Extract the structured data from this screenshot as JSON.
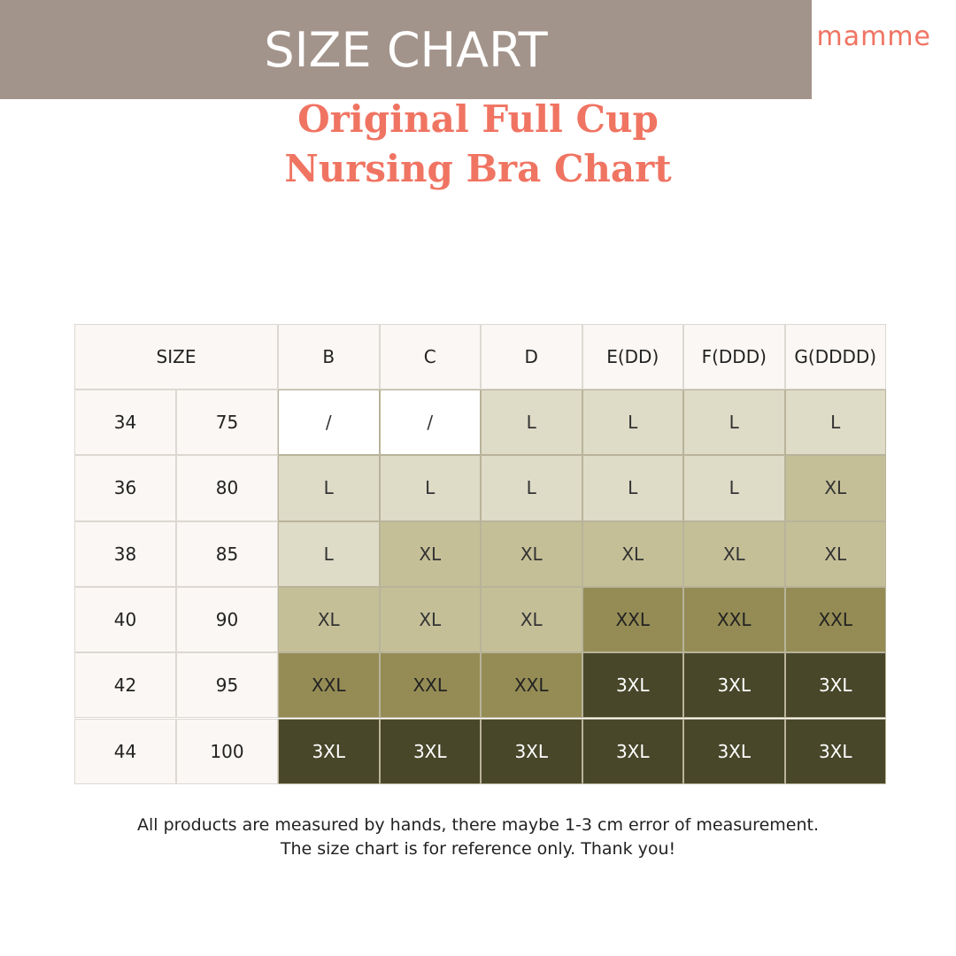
{
  "logo": "mamme",
  "title": [
    "Original Full Cup",
    "Nursing Bra Chart"
  ],
  "banner": "SIZE CHART",
  "table": {
    "header": [
      "SIZE",
      "B",
      "C",
      "D",
      "E(DD)",
      "F(DDD)",
      "G(DDDD)"
    ],
    "rows": [
      [
        "34",
        "75",
        "/",
        "/",
        "L",
        "L",
        "L",
        "L"
      ],
      [
        "36",
        "80",
        "L",
        "L",
        "L",
        "L",
        "L",
        "XL"
      ],
      [
        "38",
        "85",
        "L",
        "XL",
        "XL",
        "XL",
        "XL",
        "XL"
      ],
      [
        "40",
        "90",
        "XL",
        "XL",
        "XL",
        "XXL",
        "XXL",
        "XXL"
      ],
      [
        "42",
        "95",
        "XXL",
        "XXL",
        "XXL",
        "3XL",
        "3XL",
        "3XL"
      ],
      [
        "44",
        "100",
        "3XL",
        "3XL",
        "3XL",
        "3XL",
        "3XL",
        "3XL"
      ]
    ],
    "cell_colors": {
      "/": [
        "#ffffff",
        "#333333"
      ],
      "L": [
        "#dedbc7",
        "#333333"
      ],
      "XL": [
        "#c5bf98",
        "#333333"
      ],
      "XXL": [
        "#958c55",
        "#222222"
      ],
      "3XL": [
        "#48472a",
        "#ffffff"
      ]
    }
  },
  "footer": [
    "All products are measured by hands, there maybe 1-3 cm error of measurement.",
    "The size chart is for reference only. Thank you!"
  ]
}
